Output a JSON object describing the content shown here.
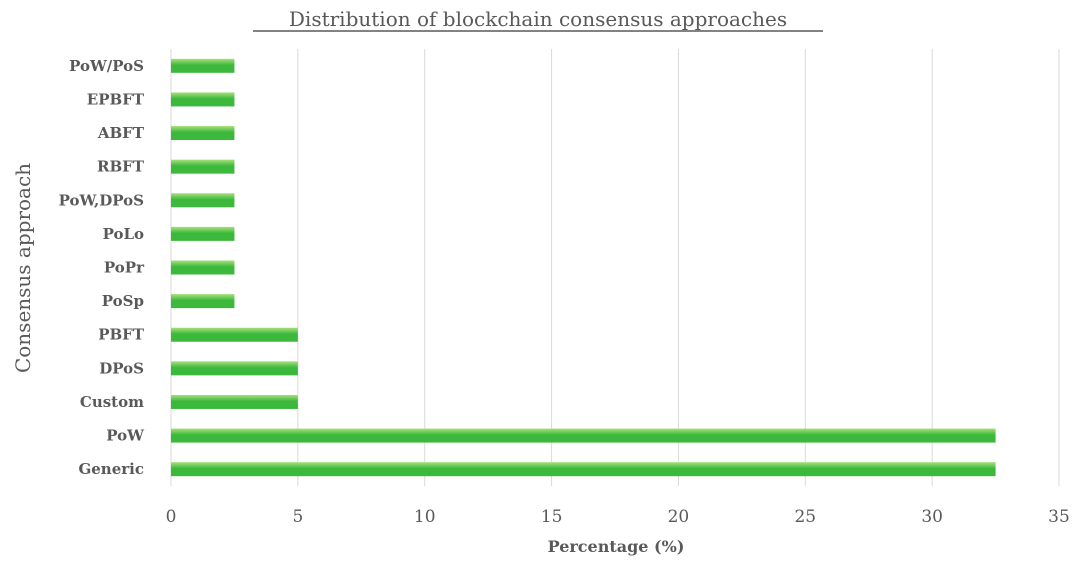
{
  "chart_data": {
    "type": "bar",
    "orientation": "horizontal",
    "title": "Distribution of blockchain consensus approaches",
    "xlabel": "Percentage (%)",
    "ylabel": "Consensus approach",
    "categories": [
      "Generic",
      "PoW",
      "Custom",
      "DPoS",
      "PBFT",
      "PoSp",
      "PoPr",
      "PoLo",
      "PoW,DPoS",
      "RBFT",
      "ABFT",
      "EPBFT",
      "PoW/PoS"
    ],
    "values": [
      32.5,
      32.5,
      5,
      5,
      5,
      2.5,
      2.5,
      2.5,
      2.5,
      2.5,
      2.5,
      2.5,
      2.5
    ],
    "xlim": [
      0,
      35
    ],
    "xticks": [
      "0",
      "5",
      "10",
      "15",
      "20",
      "25",
      "30",
      "35"
    ],
    "grid": true,
    "bar_color": "#3cb93c",
    "bar_highlight_color": "#a6e07a"
  }
}
